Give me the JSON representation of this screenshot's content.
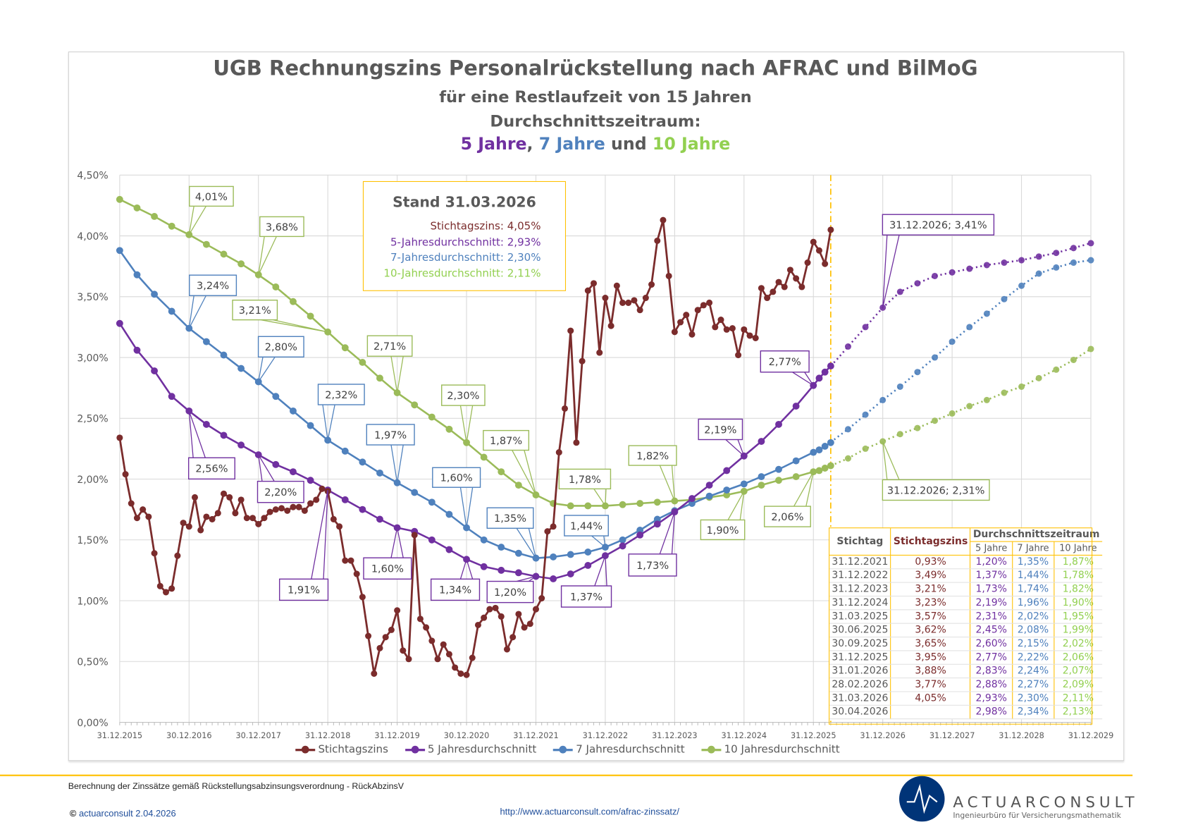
{
  "title": {
    "line1": "UGB Rechnungszins Personalrückstellung nach AFRAC und BilMoG",
    "line2": "für eine Restlaufzeit von 15 Jahren",
    "line3": "Durchschnittszeitraum:",
    "line4_a": "5 Jahre",
    "line4_sep1": ", ",
    "line4_b": "7 Jahre",
    "line4_sep2": " und ",
    "line4_c": "10 Jahre"
  },
  "stand_box": {
    "heading": "Stand 31.03.2026",
    "lines": [
      "Stichtagszins: 4,05%",
      "5-Jahresdurchschnitt: 2,93%",
      "7-Jahresdurchschnitt: 2,30%",
      "10-Jahresdurchschnitt: 2,11%"
    ]
  },
  "colors": {
    "stichtag": "#7B2C2C",
    "y5": "#7030A0",
    "y7": "#4F81BD",
    "y10": "#9BBB59",
    "y10_text": "#92D050",
    "accent": "#FFC000",
    "brand": "#003478"
  },
  "legend": [
    "Stichtagszins",
    "5 Jahresdurchschnitt",
    "7 Jahresdurchschnitt",
    "10 Jahresdurchschnitt"
  ],
  "table": {
    "headers": {
      "stichtag": "Stichtag",
      "zins": "Stichtagszins",
      "group": "Durchschnittszeitraum",
      "y5": "5 Jahre",
      "y7": "7 Jahre",
      "y10": "10 Jahre"
    },
    "rows": [
      [
        "31.12.2021",
        "0,93%",
        "1,20%",
        "1,35%",
        "1,87%"
      ],
      [
        "31.12.2022",
        "3,49%",
        "1,37%",
        "1,44%",
        "1,78%"
      ],
      [
        "31.12.2023",
        "3,21%",
        "1,73%",
        "1,74%",
        "1,82%"
      ],
      [
        "31.12.2024",
        "3,23%",
        "2,19%",
        "1,96%",
        "1,90%"
      ],
      [
        "31.03.2025",
        "3,57%",
        "2,31%",
        "2,02%",
        "1,95%"
      ],
      [
        "30.06.2025",
        "3,62%",
        "2,45%",
        "2,08%",
        "1,99%"
      ],
      [
        "30.09.2025",
        "3,65%",
        "2,60%",
        "2,15%",
        "2,02%"
      ],
      [
        "31.12.2025",
        "3,95%",
        "2,77%",
        "2,22%",
        "2,06%"
      ],
      [
        "31.01.2026",
        "3,88%",
        "2,83%",
        "2,24%",
        "2,07%"
      ],
      [
        "28.02.2026",
        "3,77%",
        "2,88%",
        "2,27%",
        "2,09%"
      ],
      [
        "31.03.2026",
        "4,05%",
        "2,93%",
        "2,30%",
        "2,11%"
      ],
      [
        "30.04.2026",
        "",
        "2,98%",
        "2,34%",
        "2,13%"
      ]
    ]
  },
  "footer": {
    "note": "Berechnung der Zinssätze gemäß Rückstellungsabzinsungsverordnung - RückAbzinsV",
    "copyright_symbol": "©",
    "copyright": "actuarconsult 2.04.2026",
    "url": "http://www.actuarconsult.com/afrac-zinssatz/",
    "brand": "ACTUARCONSULT",
    "brand_sub": "Ingenieurbüro für Versicherungsmathematik"
  },
  "chart_data": {
    "type": "line",
    "grid": true,
    "legend_position": "bottom",
    "ylim": [
      0,
      4.5
    ],
    "xlim": [
      "2015-12",
      "2029-12"
    ],
    "y_tick_labels": [
      "0,00%",
      "0,50%",
      "1,00%",
      "1,50%",
      "2,00%",
      "2,50%",
      "3,00%",
      "3,50%",
      "4,00%",
      "4,50%"
    ],
    "x_tick_labels": [
      "31.12.2015",
      "30.12.2016",
      "30.12.2017",
      "31.12.2018",
      "31.12.2019",
      "30.12.2020",
      "31.12.2021",
      "31.12.2022",
      "31.12.2023",
      "31.12.2024",
      "31.12.2025",
      "31.12.2026",
      "31.12.2027",
      "31.12.2028",
      "31.12.2029"
    ],
    "reference_line_date": "2026-03",
    "series": [
      {
        "name": "Stichtagszins",
        "color": "#7B2C2C",
        "values": {
          "2015-12": 2.34,
          "2016-01": 2.04,
          "2016-02": 1.8,
          "2016-03": 1.68,
          "2016-04": 1.75,
          "2016-05": 1.69,
          "2016-06": 1.39,
          "2016-07": 1.12,
          "2016-08": 1.07,
          "2016-09": 1.1,
          "2016-10": 1.37,
          "2016-11": 1.64,
          "2016-12": 1.61,
          "2017-01": 1.85,
          "2017-02": 1.58,
          "2017-03": 1.69,
          "2017-04": 1.67,
          "2017-05": 1.72,
          "2017-06": 1.88,
          "2017-07": 1.85,
          "2017-08": 1.72,
          "2017-09": 1.83,
          "2017-10": 1.68,
          "2017-11": 1.68,
          "2017-12": 1.63,
          "2018-01": 1.68,
          "2018-02": 1.73,
          "2018-03": 1.75,
          "2018-04": 1.76,
          "2018-05": 1.74,
          "2018-06": 1.77,
          "2018-07": 1.77,
          "2018-08": 1.74,
          "2018-09": 1.8,
          "2018-10": 1.83,
          "2018-11": 1.92,
          "2018-12": 1.9,
          "2019-01": 1.67,
          "2019-02": 1.61,
          "2019-03": 1.33,
          "2019-04": 1.33,
          "2019-05": 1.22,
          "2019-06": 1.03,
          "2019-07": 0.71,
          "2019-08": 0.4,
          "2019-09": 0.61,
          "2019-10": 0.7,
          "2019-11": 0.76,
          "2019-12": 0.92,
          "2020-01": 0.59,
          "2020-02": 0.52,
          "2020-03": 1.54,
          "2020-04": 0.85,
          "2020-05": 0.78,
          "2020-06": 0.67,
          "2020-07": 0.52,
          "2020-08": 0.64,
          "2020-09": 0.56,
          "2020-10": 0.45,
          "2020-11": 0.4,
          "2020-12": 0.39,
          "2021-01": 0.53,
          "2021-02": 0.8,
          "2021-03": 0.86,
          "2021-04": 0.93,
          "2021-05": 0.94,
          "2021-06": 0.87,
          "2021-07": 0.6,
          "2021-08": 0.7,
          "2021-09": 0.89,
          "2021-10": 0.78,
          "2021-11": 0.81,
          "2021-12": 0.93,
          "2022-01": 1.02,
          "2022-02": 1.57,
          "2022-03": 1.61,
          "2022-04": 2.22,
          "2022-05": 2.58,
          "2022-06": 3.22,
          "2022-07": 2.3,
          "2022-08": 2.97,
          "2022-09": 3.55,
          "2022-10": 3.61,
          "2022-11": 3.04,
          "2022-12": 3.49,
          "2023-01": 3.26,
          "2023-02": 3.59,
          "2023-03": 3.45,
          "2023-04": 3.45,
          "2023-05": 3.47,
          "2023-06": 3.39,
          "2023-07": 3.49,
          "2023-08": 3.6,
          "2023-09": 3.96,
          "2023-10": 4.13,
          "2023-11": 3.67,
          "2023-12": 3.21,
          "2024-01": 3.29,
          "2024-02": 3.35,
          "2024-03": 3.19,
          "2024-04": 3.39,
          "2024-05": 3.43,
          "2024-06": 3.45,
          "2024-07": 3.25,
          "2024-08": 3.31,
          "2024-09": 3.23,
          "2024-10": 3.24,
          "2024-11": 3.02,
          "2024-12": 3.23,
          "2025-01": 3.18,
          "2025-02": 3.16,
          "2025-03": 3.57,
          "2025-04": 3.49,
          "2025-05": 3.54,
          "2025-06": 3.62,
          "2025-07": 3.58,
          "2025-08": 3.72,
          "2025-09": 3.65,
          "2025-10": 3.58,
          "2025-11": 3.78,
          "2025-12": 3.95,
          "2026-01": 3.88,
          "2026-02": 3.77,
          "2026-03": 4.05
        }
      },
      {
        "name": "5 Jahresdurchschnitt",
        "color": "#7030A0",
        "values": {
          "2015-12": 3.28,
          "2016-03": 3.06,
          "2016-06": 2.89,
          "2016-09": 2.68,
          "2016-12": 2.56,
          "2017-03": 2.45,
          "2017-06": 2.36,
          "2017-09": 2.28,
          "2017-12": 2.2,
          "2018-03": 2.12,
          "2018-06": 2.06,
          "2018-09": 1.99,
          "2018-12": 1.91,
          "2019-03": 1.83,
          "2019-06": 1.75,
          "2019-09": 1.67,
          "2019-12": 1.6,
          "2020-03": 1.57,
          "2020-06": 1.5,
          "2020-09": 1.42,
          "2020-12": 1.34,
          "2021-03": 1.28,
          "2021-06": 1.25,
          "2021-09": 1.23,
          "2021-12": 1.2,
          "2022-03": 1.18,
          "2022-06": 1.22,
          "2022-09": 1.29,
          "2022-12": 1.37,
          "2023-03": 1.45,
          "2023-06": 1.54,
          "2023-09": 1.63,
          "2023-12": 1.73,
          "2024-03": 1.84,
          "2024-06": 1.95,
          "2024-09": 2.07,
          "2024-12": 2.19,
          "2025-03": 2.31,
          "2025-06": 2.45,
          "2025-09": 2.6,
          "2025-12": 2.77,
          "2026-01": 2.83,
          "2026-02": 2.88,
          "2026-03": 2.93
        },
        "projection": {
          "2026-04": 2.98,
          "2026-06": 3.09,
          "2026-09": 3.25,
          "2026-12": 3.41,
          "2027-03": 3.54,
          "2027-06": 3.61,
          "2027-09": 3.67,
          "2027-12": 3.7,
          "2028-03": 3.73,
          "2028-06": 3.76,
          "2028-09": 3.78,
          "2028-12": 3.8,
          "2029-03": 3.83,
          "2029-06": 3.86,
          "2029-09": 3.9,
          "2029-12": 3.94
        }
      },
      {
        "name": "7 Jahresdurchschnitt",
        "color": "#4F81BD",
        "values": {
          "2015-12": 3.88,
          "2016-03": 3.68,
          "2016-06": 3.52,
          "2016-09": 3.38,
          "2016-12": 3.24,
          "2017-03": 3.13,
          "2017-06": 3.02,
          "2017-09": 2.91,
          "2017-12": 2.8,
          "2018-03": 2.68,
          "2018-06": 2.56,
          "2018-09": 2.44,
          "2018-12": 2.32,
          "2019-03": 2.23,
          "2019-06": 2.14,
          "2019-09": 2.05,
          "2019-12": 1.97,
          "2020-03": 1.89,
          "2020-06": 1.81,
          "2020-09": 1.71,
          "2020-12": 1.6,
          "2021-03": 1.5,
          "2021-06": 1.44,
          "2021-09": 1.39,
          "2021-12": 1.35,
          "2022-03": 1.36,
          "2022-06": 1.38,
          "2022-09": 1.4,
          "2022-12": 1.44,
          "2023-03": 1.5,
          "2023-06": 1.58,
          "2023-09": 1.67,
          "2023-12": 1.74,
          "2024-03": 1.8,
          "2024-06": 1.86,
          "2024-09": 1.91,
          "2024-12": 1.96,
          "2025-03": 2.02,
          "2025-06": 2.08,
          "2025-09": 2.15,
          "2025-12": 2.22,
          "2026-01": 2.24,
          "2026-02": 2.27,
          "2026-03": 2.3
        },
        "projection": {
          "2026-04": 2.34,
          "2026-06": 2.41,
          "2026-09": 2.53,
          "2026-12": 2.65,
          "2027-03": 2.76,
          "2027-06": 2.88,
          "2027-09": 3.0,
          "2027-12": 3.13,
          "2028-03": 3.25,
          "2028-06": 3.36,
          "2028-09": 3.48,
          "2028-12": 3.59,
          "2029-03": 3.69,
          "2029-06": 3.74,
          "2029-09": 3.78,
          "2029-12": 3.8
        }
      },
      {
        "name": "10 Jahresdurchschnitt",
        "color": "#9BBB59",
        "values": {
          "2015-12": 4.3,
          "2016-03": 4.23,
          "2016-06": 4.16,
          "2016-09": 4.08,
          "2016-12": 4.01,
          "2017-03": 3.93,
          "2017-06": 3.85,
          "2017-09": 3.77,
          "2017-12": 3.68,
          "2018-03": 3.58,
          "2018-06": 3.46,
          "2018-09": 3.34,
          "2018-12": 3.21,
          "2019-03": 3.08,
          "2019-06": 2.96,
          "2019-09": 2.83,
          "2019-12": 2.71,
          "2020-03": 2.61,
          "2020-06": 2.51,
          "2020-09": 2.41,
          "2020-12": 2.3,
          "2021-03": 2.18,
          "2021-06": 2.06,
          "2021-09": 1.95,
          "2021-12": 1.87,
          "2022-03": 1.8,
          "2022-06": 1.78,
          "2022-09": 1.78,
          "2022-12": 1.78,
          "2023-03": 1.79,
          "2023-06": 1.8,
          "2023-09": 1.81,
          "2023-12": 1.82,
          "2024-03": 1.83,
          "2024-06": 1.85,
          "2024-09": 1.87,
          "2024-12": 1.9,
          "2025-03": 1.95,
          "2025-06": 1.99,
          "2025-09": 2.02,
          "2025-12": 2.06,
          "2026-01": 2.07,
          "2026-02": 2.09,
          "2026-03": 2.11
        },
        "projection": {
          "2026-04": 2.13,
          "2026-06": 2.17,
          "2026-09": 2.25,
          "2026-12": 2.31,
          "2027-03": 2.37,
          "2027-06": 2.42,
          "2027-09": 2.48,
          "2027-12": 2.54,
          "2028-03": 2.6,
          "2028-06": 2.65,
          "2028-09": 2.71,
          "2028-12": 2.76,
          "2029-03": 2.83,
          "2029-06": 2.9,
          "2029-09": 2.98,
          "2029-12": 3.07
        }
      }
    ],
    "annotations": [
      {
        "series": 3,
        "date": "2016-12",
        "text": "4,01%"
      },
      {
        "series": 3,
        "date": "2017-12",
        "text": "3,68%"
      },
      {
        "series": 3,
        "date": "2018-12",
        "text": "3,21%"
      },
      {
        "series": 3,
        "date": "2019-12",
        "text": "2,71%"
      },
      {
        "series": 3,
        "date": "2020-12",
        "text": "2,30%"
      },
      {
        "series": 3,
        "date": "2021-12",
        "text": "1,87%"
      },
      {
        "series": 3,
        "date": "2022-12",
        "text": "1,78%"
      },
      {
        "series": 3,
        "date": "2023-12",
        "text": "1,82%"
      },
      {
        "series": 3,
        "date": "2024-12",
        "text": "1,90%"
      },
      {
        "series": 3,
        "date": "2025-12",
        "text": "2,06%"
      },
      {
        "series": 3,
        "date": "2026-12",
        "text": "31.12.2026; 2,31%"
      },
      {
        "series": 2,
        "date": "2016-12",
        "text": "3,24%"
      },
      {
        "series": 2,
        "date": "2017-12",
        "text": "2,80%"
      },
      {
        "series": 2,
        "date": "2018-12",
        "text": "2,32%"
      },
      {
        "series": 2,
        "date": "2019-12",
        "text": "1,97%"
      },
      {
        "series": 2,
        "date": "2020-12",
        "text": "1,60%"
      },
      {
        "series": 2,
        "date": "2021-12",
        "text": "1,35%"
      },
      {
        "series": 2,
        "date": "2022-12",
        "text": "1,44%"
      },
      {
        "series": 1,
        "date": "2016-12",
        "text": "2,56%"
      },
      {
        "series": 1,
        "date": "2017-12",
        "text": "2,20%"
      },
      {
        "series": 1,
        "date": "2018-12",
        "text": "1,91%"
      },
      {
        "series": 1,
        "date": "2019-12",
        "text": "1,60%"
      },
      {
        "series": 1,
        "date": "2020-12",
        "text": "1,34%"
      },
      {
        "series": 1,
        "date": "2021-12",
        "text": "1,20%"
      },
      {
        "series": 1,
        "date": "2022-12",
        "text": "1,37%"
      },
      {
        "series": 1,
        "date": "2023-12",
        "text": "1,73%"
      },
      {
        "series": 1,
        "date": "2024-12",
        "text": "2,19%"
      },
      {
        "series": 1,
        "date": "2025-12",
        "text": "2,77%"
      },
      {
        "series": 1,
        "date": "2026-12",
        "text": "31.12.2026; 3,41%"
      }
    ]
  }
}
